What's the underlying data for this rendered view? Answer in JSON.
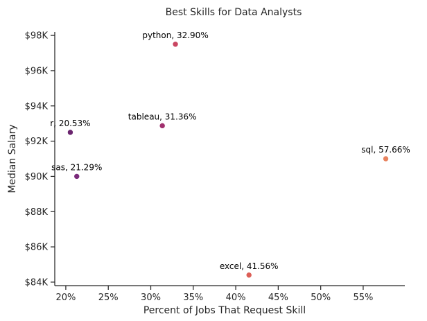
{
  "chart_data": {
    "type": "scatter",
    "title": "Best Skills for Data Analysts",
    "xlabel": "Percent of Jobs That Request Skill",
    "ylabel": "Median Salary",
    "xlim": [
      18.7,
      59.9
    ],
    "ylim": [
      83800,
      98200
    ],
    "x_ticks": [
      20,
      25,
      30,
      35,
      40,
      45,
      50,
      55
    ],
    "x_tick_labels": [
      "20%",
      "25%",
      "30%",
      "35%",
      "40%",
      "45%",
      "50%",
      "55%"
    ],
    "y_ticks": [
      84000,
      86000,
      88000,
      90000,
      92000,
      94000,
      96000,
      98000
    ],
    "y_tick_labels": [
      "$84K",
      "$86K",
      "$88K",
      "$90K",
      "$92K",
      "$94K",
      "$96K",
      "$98K"
    ],
    "grid": false,
    "points": [
      {
        "label": "sql, 57.66%",
        "x": 57.66,
        "y": 91000,
        "color": "#e8835f"
      },
      {
        "label": "excel, 41.56%",
        "x": 41.56,
        "y": 84400,
        "color": "#dc5e56"
      },
      {
        "label": "python, 32.90%",
        "x": 32.9,
        "y": 97500,
        "color": "#c94561"
      },
      {
        "label": "tableau, 31.36%",
        "x": 31.36,
        "y": 92875,
        "color": "#a1306e"
      },
      {
        "label": "sas, 21.29%",
        "x": 21.29,
        "y": 90000,
        "color": "#7a2a7a"
      },
      {
        "label": "r, 20.53%",
        "x": 20.53,
        "y": 92500,
        "color": "#6a256e"
      }
    ]
  }
}
